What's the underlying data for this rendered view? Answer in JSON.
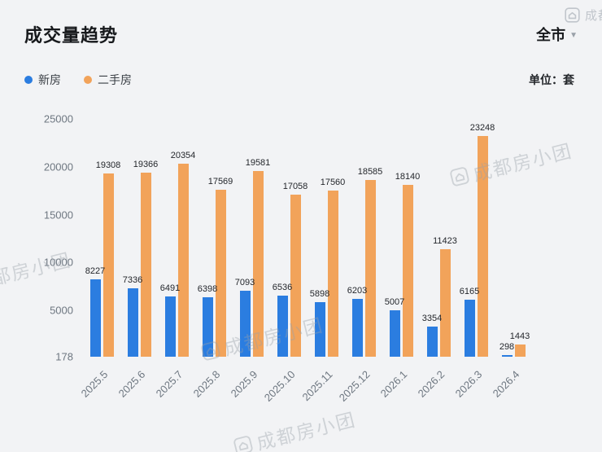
{
  "header": {
    "title": "成交量趋势",
    "region_label": "全市"
  },
  "icons": {
    "caret_down": "▼"
  },
  "legend": {
    "unit_label": "单位：套"
  },
  "watermark": {
    "text": "成都房小团"
  },
  "chart_data": {
    "type": "bar",
    "title": "成交量趋势",
    "xlabel": "",
    "ylabel": "",
    "unit": "套",
    "categories": [
      "2025.5",
      "2025.6",
      "2025.7",
      "2025.8",
      "2025.9",
      "2025.10",
      "2025.11",
      "2025.12",
      "2026.1",
      "2026.2",
      "2026.3",
      "2026.4"
    ],
    "series": [
      {
        "name": "新房",
        "color": "#2b7de0",
        "values": [
          8227,
          7336,
          6491,
          6398,
          7093,
          6536,
          5898,
          6203,
          5007,
          3354,
          6165,
          298
        ]
      },
      {
        "name": "二手房",
        "color": "#f2a35a",
        "values": [
          19308,
          19366,
          20354,
          17569,
          19581,
          17058,
          17560,
          18585,
          18140,
          11423,
          23248,
          1443
        ]
      }
    ],
    "ylim": [
      178,
      25000
    ],
    "yticks": [
      25000,
      20000,
      15000,
      10000,
      5000,
      178
    ],
    "grid": false,
    "legend_position": "top-left",
    "value_labels": true
  }
}
